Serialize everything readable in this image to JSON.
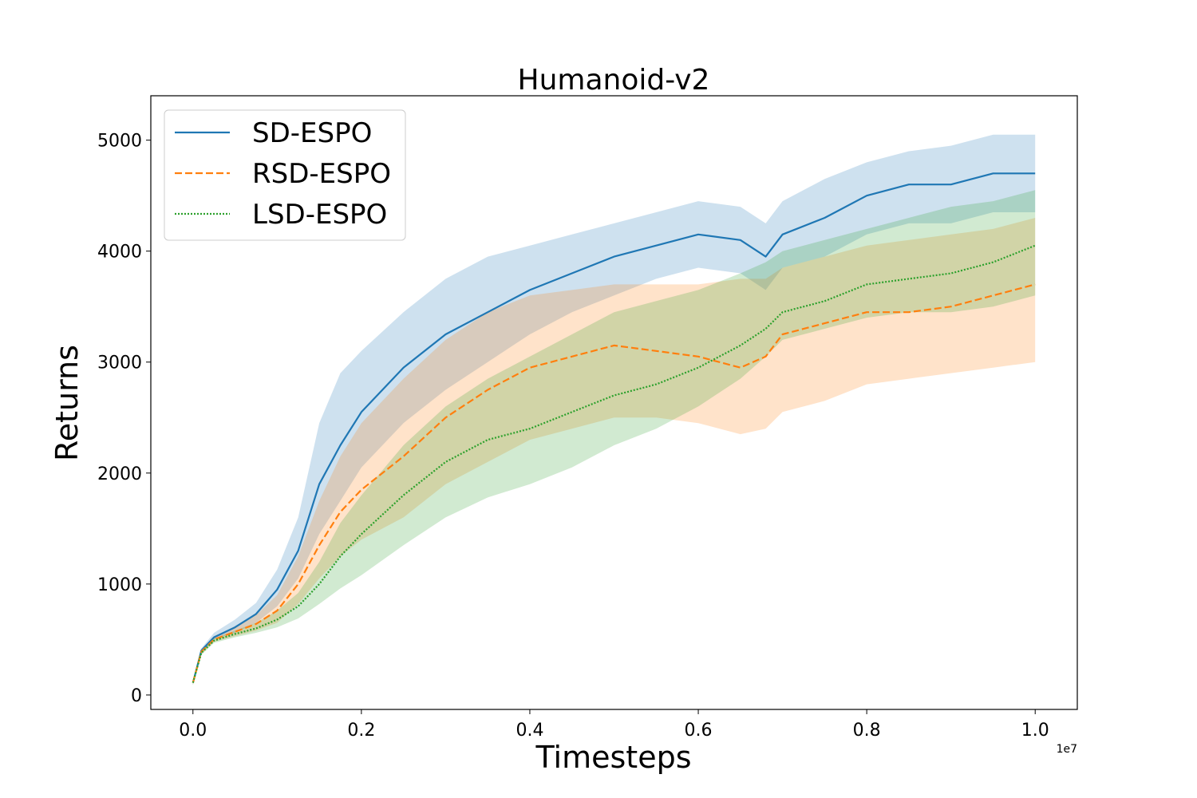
{
  "chart_data": {
    "type": "line",
    "title": "Humanoid-v2",
    "xlabel": "Timesteps",
    "ylabel": "Returns",
    "x_offset_label": "1e7",
    "xlim": [
      -0.05,
      1.05
    ],
    "ylim": [
      -130,
      5400
    ],
    "xticks": [
      0.0,
      0.2,
      0.4,
      0.6,
      0.8,
      1.0
    ],
    "xtick_labels": [
      "0.0",
      "0.2",
      "0.4",
      "0.6",
      "0.8",
      "1.0"
    ],
    "yticks": [
      0,
      1000,
      2000,
      3000,
      4000,
      5000
    ],
    "ytick_labels": [
      "0",
      "1000",
      "2000",
      "3000",
      "4000",
      "5000"
    ],
    "grid": false,
    "legend_position": "top-left",
    "x": [
      0.0,
      0.01,
      0.025,
      0.05,
      0.075,
      0.1,
      0.125,
      0.15,
      0.175,
      0.2,
      0.25,
      0.3,
      0.35,
      0.4,
      0.45,
      0.5,
      0.55,
      0.6,
      0.65,
      0.68,
      0.7,
      0.75,
      0.8,
      0.85,
      0.9,
      0.95,
      1.0
    ],
    "series": [
      {
        "name": "SD-ESPO",
        "color": "#1f77b4",
        "linestyle": "solid",
        "values": [
          110,
          400,
          520,
          610,
          730,
          950,
          1300,
          1900,
          2250,
          2550,
          2950,
          3250,
          3450,
          3650,
          3800,
          3950,
          4050,
          4150,
          4100,
          3950,
          4150,
          4300,
          4500,
          4600,
          4600,
          4700,
          4700
        ],
        "upper": [
          130,
          420,
          560,
          680,
          830,
          1130,
          1600,
          2450,
          2900,
          3100,
          3450,
          3750,
          3950,
          4050,
          4150,
          4250,
          4350,
          4450,
          4400,
          4250,
          4450,
          4650,
          4800,
          4900,
          4950,
          5050,
          5050
        ],
        "lower": [
          90,
          380,
          500,
          560,
          650,
          800,
          1050,
          1450,
          1750,
          2050,
          2450,
          2750,
          3000,
          3250,
          3450,
          3600,
          3750,
          3850,
          3800,
          3650,
          3850,
          3950,
          4150,
          4250,
          4250,
          4350,
          4350
        ]
      },
      {
        "name": "RSD-ESPO",
        "color": "#ff7f0e",
        "linestyle": "dashed",
        "values": [
          110,
          390,
          500,
          570,
          640,
          760,
          1000,
          1350,
          1650,
          1850,
          2150,
          2500,
          2750,
          2950,
          3050,
          3150,
          3100,
          3050,
          2950,
          3050,
          3250,
          3350,
          3450,
          3450,
          3500,
          3600,
          3700
        ],
        "upper": [
          130,
          410,
          530,
          620,
          720,
          900,
          1250,
          1750,
          2150,
          2450,
          2850,
          3200,
          3450,
          3600,
          3650,
          3700,
          3700,
          3700,
          3750,
          3750,
          3850,
          3950,
          4050,
          4100,
          4150,
          4200,
          4300
        ],
        "lower": [
          90,
          370,
          480,
          530,
          580,
          650,
          820,
          1050,
          1250,
          1400,
          1600,
          1900,
          2100,
          2300,
          2400,
          2500,
          2500,
          2450,
          2350,
          2400,
          2550,
          2650,
          2800,
          2850,
          2900,
          2950,
          3000
        ]
      },
      {
        "name": "LSD-ESPO",
        "color": "#2ca02c",
        "linestyle": "dotted",
        "values": [
          110,
          380,
          490,
          550,
          600,
          680,
          800,
          1000,
          1250,
          1450,
          1800,
          2100,
          2300,
          2400,
          2550,
          2700,
          2800,
          2950,
          3150,
          3300,
          3450,
          3550,
          3700,
          3750,
          3800,
          3900,
          4050
        ],
        "upper": [
          130,
          400,
          510,
          580,
          650,
          760,
          920,
          1200,
          1550,
          1800,
          2250,
          2600,
          2850,
          3050,
          3250,
          3450,
          3550,
          3650,
          3800,
          3900,
          4000,
          4100,
          4200,
          4300,
          4400,
          4450,
          4550
        ],
        "lower": [
          90,
          360,
          470,
          520,
          560,
          610,
          690,
          820,
          960,
          1080,
          1350,
          1600,
          1780,
          1900,
          2050,
          2250,
          2400,
          2600,
          2850,
          3050,
          3200,
          3300,
          3400,
          3450,
          3450,
          3500,
          3600
        ]
      }
    ]
  }
}
